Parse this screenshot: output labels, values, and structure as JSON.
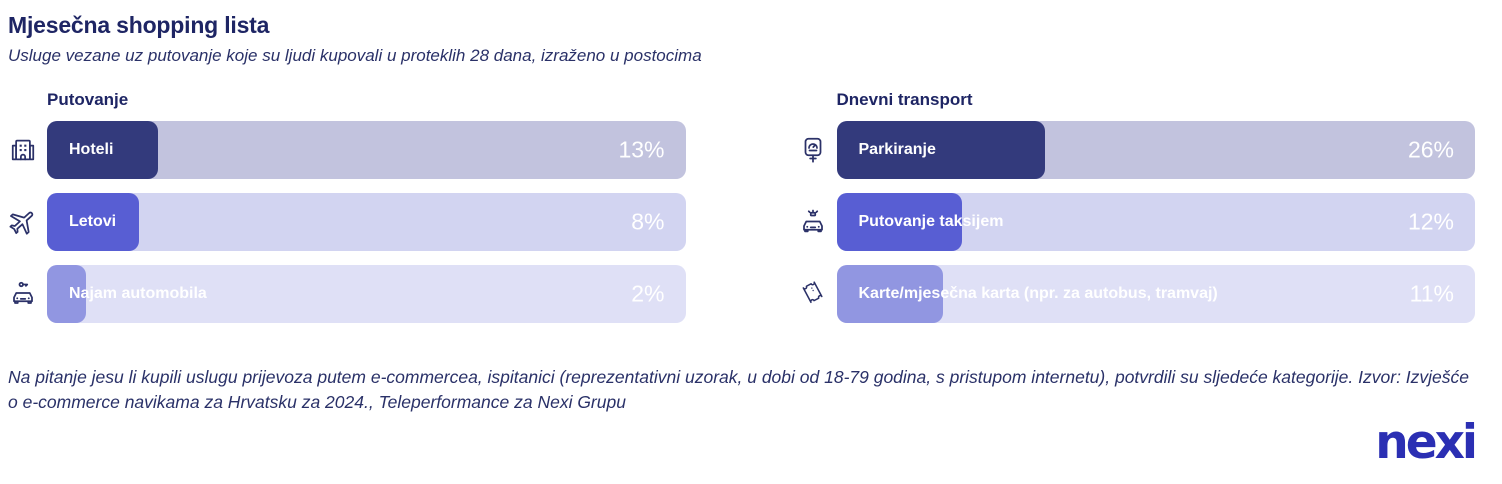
{
  "header": {
    "title": "Mjesečna shopping lista",
    "subtitle": "Usluge vezane uz putovanje koje su ljudi kupovali u proteklih 28 dana, izraženo u postocima"
  },
  "colors": {
    "heading_navy": "#1e2564",
    "body_navy": "#2a3168",
    "icon_stroke": "#2b3168",
    "bar_text_white": "#ffffff",
    "nexi_blue": "#2b2fb3",
    "pill_row1": "#333a7c",
    "pill_row2": "#585ed3",
    "pill_row3": "#9196e1",
    "track_row1": "#c2c3de",
    "track_row2": "#d2d4f1",
    "track_row3": "#dfe0f6"
  },
  "chart_data": {
    "type": "bar",
    "title": "Mjesečna shopping lista",
    "subtitle": "Usluge vezane uz putovanje koje su ljudi kupovali u proteklih 28 dana, izraženo u postocima",
    "unit": "%",
    "value_range": [
      0,
      100
    ],
    "legend": "none",
    "grid": false,
    "orientation": "horizontal",
    "groups": [
      {
        "title": "Putovanje",
        "items": [
          {
            "label": "Hoteli",
            "value": 13,
            "display": "13%",
            "icon": "hotel-icon",
            "pill_pct": 17.4,
            "pill_color": "#333a7c",
            "track_color": "#c2c3de"
          },
          {
            "label": "Letovi",
            "value": 8,
            "display": "8%",
            "icon": "plane-icon",
            "pill_pct": 14.4,
            "pill_color": "#585ed3",
            "track_color": "#d2d4f1"
          },
          {
            "label": "Najam automobila",
            "value": 2,
            "display": "2%",
            "icon": "rental-car-icon",
            "pill_pct": 6.1,
            "pill_color": "#9196e1",
            "track_color": "#dfe0f6"
          }
        ]
      },
      {
        "title": "Dnevni transport",
        "items": [
          {
            "label": "Parkiranje",
            "value": 26,
            "display": "26%",
            "icon": "parking-meter-icon",
            "pill_pct": 32.7,
            "pill_color": "#333a7c",
            "track_color": "#c2c3de"
          },
          {
            "label": "Putovanje taksijem",
            "value": 12,
            "display": "12%",
            "icon": "taxi-icon",
            "pill_pct": 19.6,
            "pill_color": "#585ed3",
            "track_color": "#d2d4f1"
          },
          {
            "label": "Karte/mjesečna karta (npr. za autobus, tramvaj)",
            "value": 11,
            "display": "11%",
            "icon": "ticket-icon",
            "pill_pct": 16.7,
            "pill_color": "#9196e1",
            "track_color": "#dfe0f6"
          }
        ]
      }
    ]
  },
  "footer": {
    "note": "Na pitanje jesu li kupili uslugu prijevoza putem e-commercea, ispitanici (reprezentativni uzorak, u dobi od 18-79 godina, s pristupom internetu), potvrdili su sljedeće kategorije. Izvor: Izvješće o e-commerce navikama za Hrvatsku za 2024., Teleperformance za Nexi Grupu",
    "logo_text": "nexi"
  }
}
